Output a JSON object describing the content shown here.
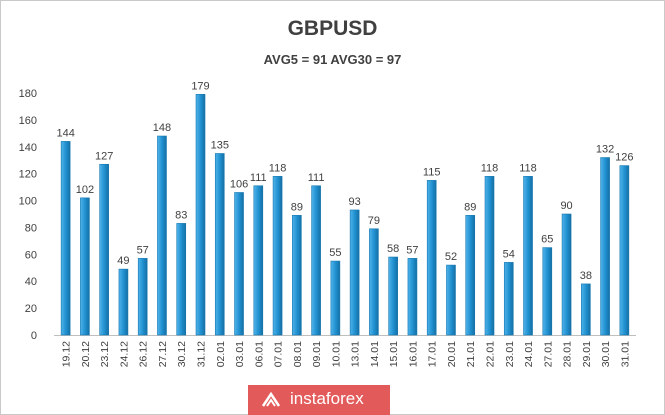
{
  "chart_data": {
    "type": "bar",
    "title": "GBPUSD",
    "subtitle": "AVG5 = 91 AVG30 = 97",
    "xlabel": "",
    "ylabel": "",
    "ylim": [
      0,
      180
    ],
    "yticks": [
      0,
      20,
      40,
      60,
      80,
      100,
      120,
      140,
      160,
      180
    ],
    "grid": false,
    "legend": "none",
    "bar_color": "#1f8fcf",
    "categories": [
      "19.12",
      "20.12",
      "23.12",
      "24.12",
      "26.12",
      "27.12",
      "30.12",
      "31.12",
      "02.01",
      "03.01",
      "06.01",
      "07.01",
      "08.01",
      "09.01",
      "10.01",
      "13.01",
      "14.01",
      "15.01",
      "16.01",
      "17.01",
      "20.01",
      "21.01",
      "22.01",
      "23.01",
      "24.01",
      "27.01",
      "28.01",
      "29.01",
      "30.01",
      "31.01"
    ],
    "values": [
      144,
      102,
      127,
      49,
      57,
      148,
      83,
      179,
      135,
      106,
      111,
      118,
      89,
      111,
      55,
      93,
      79,
      58,
      57,
      115,
      52,
      89,
      118,
      54,
      118,
      65,
      90,
      38,
      132,
      126
    ]
  },
  "brand": {
    "text": "instaforex",
    "color": "#e35a5a"
  }
}
